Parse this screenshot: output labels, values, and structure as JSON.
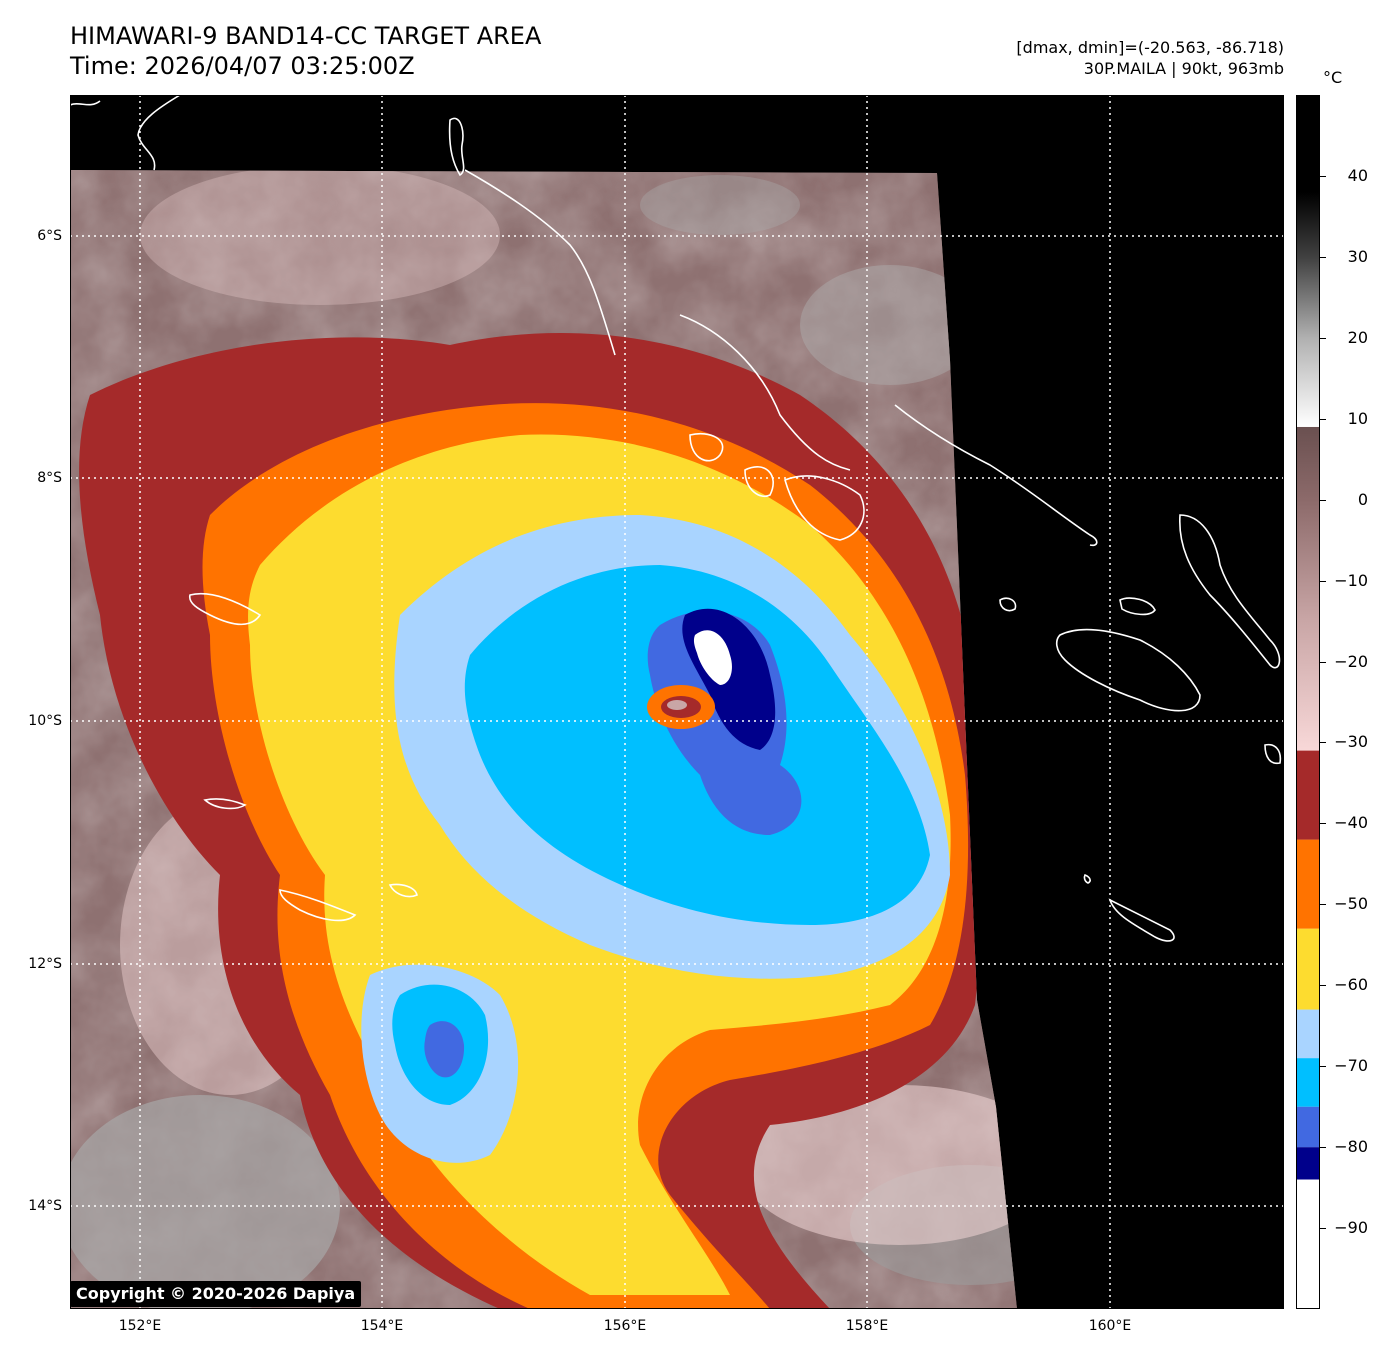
{
  "header": {
    "title_line1": "HIMAWARI-9 BAND14-CC TARGET AREA",
    "title_line2": "Time: 2026/04/07 03:25:00Z",
    "minmax": "[dmax, dmin]=(-20.563, -86.718)",
    "storm": "30P.MAILA | 90kt, 963mb"
  },
  "map": {
    "lat_labels": [
      "6°S",
      "8°S",
      "10°S",
      "12°S",
      "14°S"
    ],
    "lon_labels": [
      "152°E",
      "154°E",
      "156°E",
      "158°E",
      "160°E"
    ],
    "storm_center": {
      "lon": 156.5,
      "lat": -9.9
    }
  },
  "colorbar": {
    "unit": "°C",
    "labels": [
      "40",
      "30",
      "20",
      "10",
      "0",
      "−10",
      "−20",
      "−30",
      "−40",
      "−50",
      "−60",
      "−70",
      "−80",
      "−90"
    ],
    "range": [
      -100,
      50
    ],
    "bands": [
      {
        "from": -100,
        "to": -84,
        "color": "#ffffff"
      },
      {
        "from": -84,
        "to": -80,
        "color": "#00008b"
      },
      {
        "from": -80,
        "to": -75,
        "color": "#4169e1"
      },
      {
        "from": -75,
        "to": -69,
        "color": "#00bfff"
      },
      {
        "from": -69,
        "to": -63,
        "color": "#a9d4ff"
      },
      {
        "from": -63,
        "to": -53,
        "color": "#fddc2f"
      },
      {
        "from": -53,
        "to": -42,
        "color": "#ff7300"
      },
      {
        "from": -42,
        "to": -31,
        "color": "#a52a2a"
      }
    ],
    "gradient_stops": [
      {
        "t": -31,
        "color": "#f8d8d8"
      },
      {
        "t": -15,
        "color": "#c9a6a6"
      },
      {
        "t": 0,
        "color": "#8c6a6a"
      },
      {
        "t": 9,
        "color": "#6a5050"
      },
      {
        "t": 9.01,
        "color": "#ffffff"
      },
      {
        "t": 20,
        "color": "#b0b0b0"
      },
      {
        "t": 30,
        "color": "#404040"
      },
      {
        "t": 38,
        "color": "#000000"
      },
      {
        "t": 50,
        "color": "#000000"
      }
    ]
  },
  "colors": {
    "coastline": "#ffffff",
    "grid": "#ffffff",
    "outside_data": "#000000"
  },
  "copyright": "Copyright © 2020-2026 Dapiya"
}
